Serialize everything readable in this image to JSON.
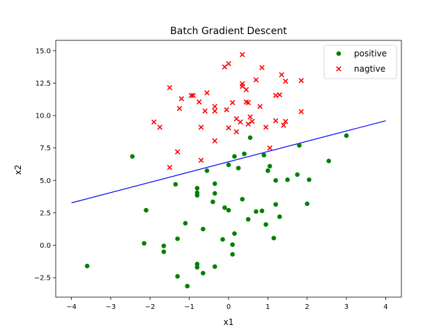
{
  "chart_data": {
    "type": "scatter",
    "title": "Batch Gradient Descent",
    "xlabel": "x1",
    "ylabel": "x2",
    "xlim": [
      -4.4,
      4.4
    ],
    "ylim": [
      -4.0,
      15.8
    ],
    "xticks": [
      -4,
      -3,
      -2,
      -1,
      0,
      1,
      2,
      3,
      4
    ],
    "xtick_labels": [
      "−4",
      "−3",
      "−2",
      "−1",
      "0",
      "1",
      "2",
      "3",
      "4"
    ],
    "yticks": [
      -2.5,
      0.0,
      2.5,
      5.0,
      7.5,
      10.0,
      12.5,
      15.0
    ],
    "ytick_labels": [
      "−2.5",
      "0.0",
      "2.5",
      "5.0",
      "7.5",
      "10.0",
      "12.5",
      "15.0"
    ],
    "legend_position": "top-right",
    "grid": false,
    "series": [
      {
        "name": "positive",
        "marker": "circle",
        "color": "#008000",
        "points": [
          [
            -3.6,
            -1.6
          ],
          [
            -2.45,
            6.85
          ],
          [
            -2.1,
            2.7
          ],
          [
            -2.15,
            0.15
          ],
          [
            -1.65,
            -0.05
          ],
          [
            -1.65,
            -0.5
          ],
          [
            -1.35,
            4.7
          ],
          [
            -1.3,
            0.5
          ],
          [
            -1.3,
            -2.4
          ],
          [
            -1.1,
            1.7
          ],
          [
            -1.05,
            -3.15
          ],
          [
            -0.8,
            4.4
          ],
          [
            -0.8,
            4.05
          ],
          [
            -0.8,
            3.85
          ],
          [
            -0.8,
            -1.45
          ],
          [
            -0.8,
            -1.7
          ],
          [
            -0.65,
            1.25
          ],
          [
            -0.65,
            -2.15
          ],
          [
            -0.55,
            5.75
          ],
          [
            -0.4,
            3.35
          ],
          [
            -0.35,
            4.75
          ],
          [
            -0.35,
            4.0
          ],
          [
            -0.35,
            -1.65
          ],
          [
            -0.15,
            0.45
          ],
          [
            -0.1,
            2.9
          ],
          [
            0.0,
            6.2
          ],
          [
            0.0,
            2.7
          ],
          [
            0.1,
            0.05
          ],
          [
            0.1,
            -0.7
          ],
          [
            0.15,
            6.85
          ],
          [
            0.15,
            0.9
          ],
          [
            0.25,
            5.95
          ],
          [
            0.35,
            3.55
          ],
          [
            0.4,
            7.05
          ],
          [
            0.5,
            2.0
          ],
          [
            0.55,
            8.3
          ],
          [
            0.7,
            2.6
          ],
          [
            0.85,
            2.65
          ],
          [
            0.9,
            6.95
          ],
          [
            0.95,
            1.6
          ],
          [
            1.05,
            6.1
          ],
          [
            1.0,
            5.75
          ],
          [
            1.15,
            0.55
          ],
          [
            1.2,
            5.0
          ],
          [
            1.2,
            3.15
          ],
          [
            1.3,
            2.2
          ],
          [
            1.5,
            5.05
          ],
          [
            1.75,
            5.45
          ],
          [
            1.8,
            7.7
          ],
          [
            2.0,
            3.2
          ],
          [
            2.05,
            5.05
          ],
          [
            2.55,
            6.5
          ],
          [
            3.0,
            8.45
          ]
        ]
      },
      {
        "name": "nagtive",
        "marker": "x",
        "color": "#ff0000",
        "points": [
          [
            -1.9,
            9.5
          ],
          [
            -1.75,
            9.1
          ],
          [
            -1.5,
            12.15
          ],
          [
            -1.5,
            6.0
          ],
          [
            -1.3,
            7.2
          ],
          [
            -1.25,
            10.55
          ],
          [
            -1.2,
            11.3
          ],
          [
            -0.95,
            11.55
          ],
          [
            -0.9,
            11.55
          ],
          [
            -0.75,
            11.05
          ],
          [
            -0.7,
            9.1
          ],
          [
            -0.7,
            6.55
          ],
          [
            -0.6,
            10.35
          ],
          [
            -0.55,
            11.75
          ],
          [
            -0.35,
            10.7
          ],
          [
            -0.35,
            10.35
          ],
          [
            -0.35,
            8.05
          ],
          [
            -0.1,
            13.75
          ],
          [
            -0.05,
            10.45
          ],
          [
            0.0,
            14.0
          ],
          [
            0.0,
            9.05
          ],
          [
            0.1,
            11.0
          ],
          [
            0.2,
            9.75
          ],
          [
            0.2,
            8.75
          ],
          [
            0.3,
            9.5
          ],
          [
            0.35,
            14.7
          ],
          [
            0.35,
            12.45
          ],
          [
            0.35,
            12.25
          ],
          [
            0.45,
            12.0
          ],
          [
            0.45,
            11.05
          ],
          [
            0.5,
            11.0
          ],
          [
            0.5,
            9.35
          ],
          [
            0.55,
            9.9
          ],
          [
            0.6,
            9.55
          ],
          [
            0.7,
            12.75
          ],
          [
            0.8,
            10.7
          ],
          [
            0.85,
            13.7
          ],
          [
            0.95,
            9.1
          ],
          [
            1.05,
            7.5
          ],
          [
            1.2,
            11.55
          ],
          [
            1.2,
            9.6
          ],
          [
            1.3,
            11.6
          ],
          [
            1.35,
            13.15
          ],
          [
            1.4,
            9.25
          ],
          [
            1.45,
            12.65
          ],
          [
            1.45,
            9.55
          ],
          [
            1.85,
            12.7
          ],
          [
            1.85,
            10.3
          ]
        ]
      }
    ],
    "decision_boundary": {
      "color": "#0000ff",
      "x": [
        -4.0,
        4.0
      ],
      "y": [
        3.27,
        9.6
      ]
    }
  }
}
